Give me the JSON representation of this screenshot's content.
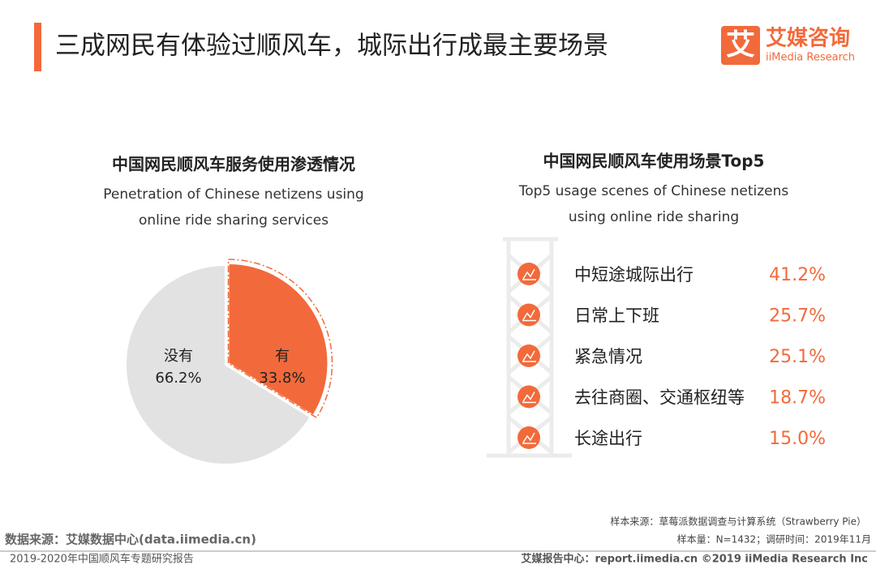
{
  "header": {
    "title": "三成网民有体验过顺风车，城际出行成最主要场景",
    "logo_mark": "艾",
    "logo_name": "艾媒咨询",
    "logo_en": "iiMedia Research"
  },
  "chart_data": [
    {
      "type": "pie",
      "title": "中国网民顺风车服务使用渗透情况",
      "subtitle": [
        "Penetration of Chinese netizens using",
        "online ride sharing services"
      ],
      "categories": [
        "有",
        "没有"
      ],
      "values": [
        33.8,
        66.2
      ],
      "value_labels": [
        "33.8%",
        "66.2%"
      ],
      "colors": [
        "#f26a3b",
        "#e2e2e2"
      ]
    },
    {
      "type": "ranking",
      "title": "中国网民顺风车使用场景Top5",
      "subtitle": [
        "Top5 usage scenes of Chinese netizens",
        "using online ride sharing"
      ],
      "categories": [
        "中短途城际出行",
        "日常上下班",
        "紧急情况",
        "去往商圈、交通枢纽等",
        "长途出行"
      ],
      "values": [
        41.2,
        25.7,
        25.1,
        18.7,
        15.0
      ],
      "value_labels": [
        "41.2%",
        "25.7%",
        "25.1%",
        "18.7%",
        "15.0%"
      ],
      "color": "#f26a3b"
    }
  ],
  "footer": {
    "source": "数据来源：艾媒数据中心(data.iimedia.cn)",
    "report": "2019-2020年中国顺风车专题研究报告",
    "sample_source": "样本来源：草莓派数据调查与计算系统（Strawberry Pie）",
    "sample_size": "样本量：N=1432；调研时间：2019年11月",
    "copyright": "艾媒报告中心：report.iimedia.cn  ©2019  iiMedia Research  Inc"
  }
}
